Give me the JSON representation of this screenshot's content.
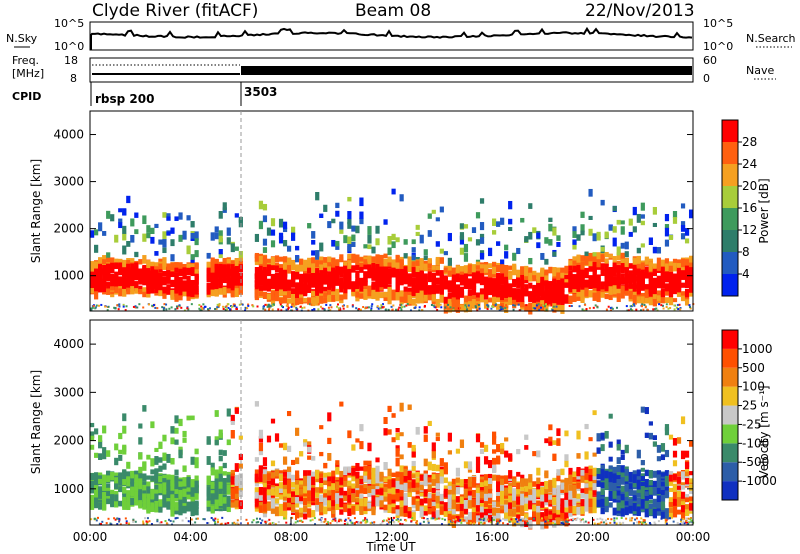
{
  "header": {
    "station": "Clyde River (fitACF)",
    "beam": "Beam 08",
    "date": "22/Nov/2013"
  },
  "noise_panel": {
    "left_label": "N.Sky",
    "right_label": "N.Search",
    "left_ticks": [
      "10^5",
      "10^0"
    ],
    "right_ticks": [
      "10^5",
      "10^0"
    ]
  },
  "freq_panel": {
    "left_label_1": "Freq.",
    "left_label_2": "[MHz]",
    "right_label": "Nave",
    "left_ticks": [
      "18",
      "8"
    ],
    "right_ticks": [
      "60",
      "0"
    ]
  },
  "cpid": {
    "label": "CPID",
    "modes": [
      {
        "name": "rbsp 200",
        "start_hour": 0
      },
      {
        "name": "3503",
        "start_hour": 6
      }
    ]
  },
  "chart_data": [
    {
      "type": "heatmap",
      "parameter": "power",
      "xlabel": "",
      "ylabel": "Slant Range [km]",
      "ylim": [
        250,
        4500
      ],
      "xlim_hours": [
        0,
        24
      ],
      "yticks": [
        "4000",
        "3000",
        "2000",
        "1000"
      ],
      "colorbar": {
        "label": "Power [dB]",
        "ticks": [
          "28",
          "24",
          "20",
          "16",
          "12",
          "8",
          "4"
        ],
        "colors": [
          "#0022ee",
          "#225bc0",
          "#2e7d6a",
          "#3e9a5c",
          "#a8cd3a",
          "#f5a020",
          "#ff6010",
          "#ff0000"
        ]
      }
    },
    {
      "type": "heatmap",
      "parameter": "velocity",
      "xlabel": "Time UT",
      "ylabel": "Slant Range [km]",
      "ylim": [
        250,
        4500
      ],
      "xlim_hours": [
        0,
        24
      ],
      "yticks": [
        "4000",
        "3000",
        "2000",
        "1000"
      ],
      "xticks": [
        "00:00",
        "04:00",
        "08:00",
        "12:00",
        "16:00",
        "20:00",
        "00:00"
      ],
      "colorbar": {
        "label": "Velocity [m s⁻¹]",
        "ticks": [
          "1000",
          "500",
          "100",
          "25",
          "-25",
          "-100",
          "-500",
          "-1000"
        ],
        "colors": [
          "#1030c0",
          "#2d5ea8",
          "#3a8a6a",
          "#6fcf3a",
          "#c8c8c8",
          "#f0c020",
          "#f08010",
          "#ff5000",
          "#ff0000"
        ]
      }
    }
  ]
}
